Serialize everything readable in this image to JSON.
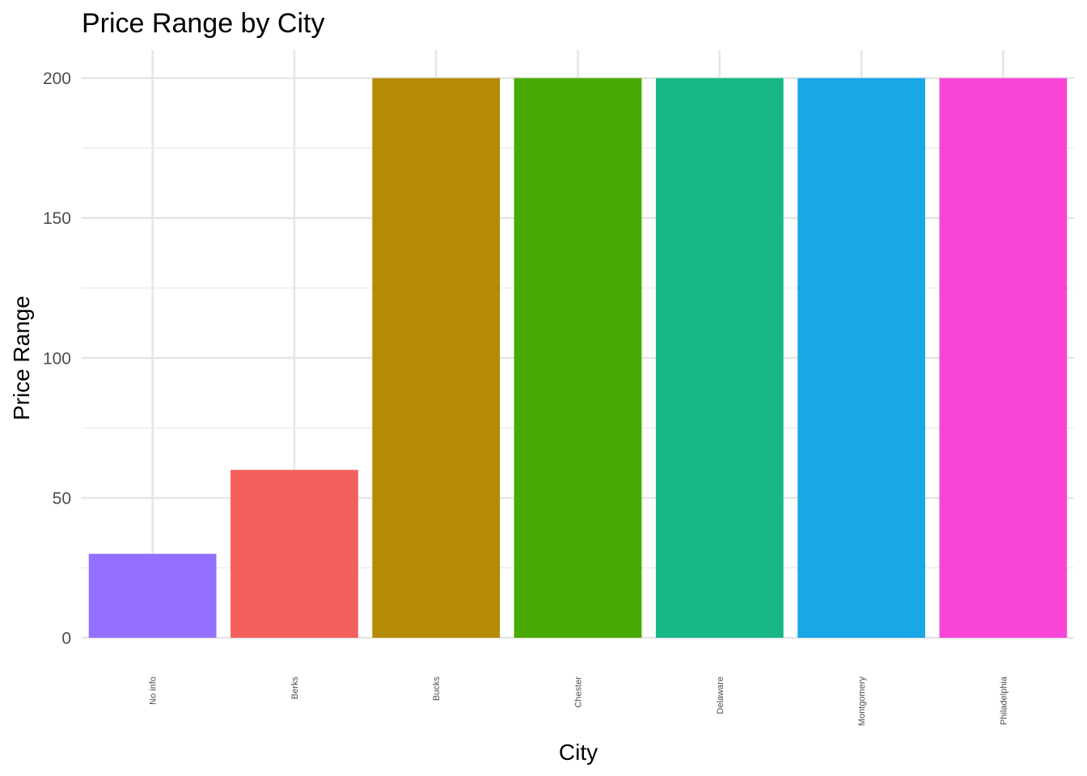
{
  "chart_data": {
    "type": "bar",
    "title": "Price Range by City",
    "xlabel": "City",
    "ylabel": "Price Range",
    "categories": [
      "No info",
      "Berks",
      "Bucks",
      "Chester",
      "Delaware",
      "Montgomery",
      "Philadelphia"
    ],
    "values": [
      30,
      60,
      200,
      200,
      200,
      200,
      200
    ],
    "colors": [
      "#9370FF",
      "#F4605C",
      "#B58A06",
      "#48AA02",
      "#17B786",
      "#18A8E5",
      "#F845D5"
    ],
    "yticks": [
      0,
      50,
      100,
      150,
      200
    ],
    "ylim": [
      0,
      210
    ],
    "grid": true,
    "legend": "none"
  }
}
